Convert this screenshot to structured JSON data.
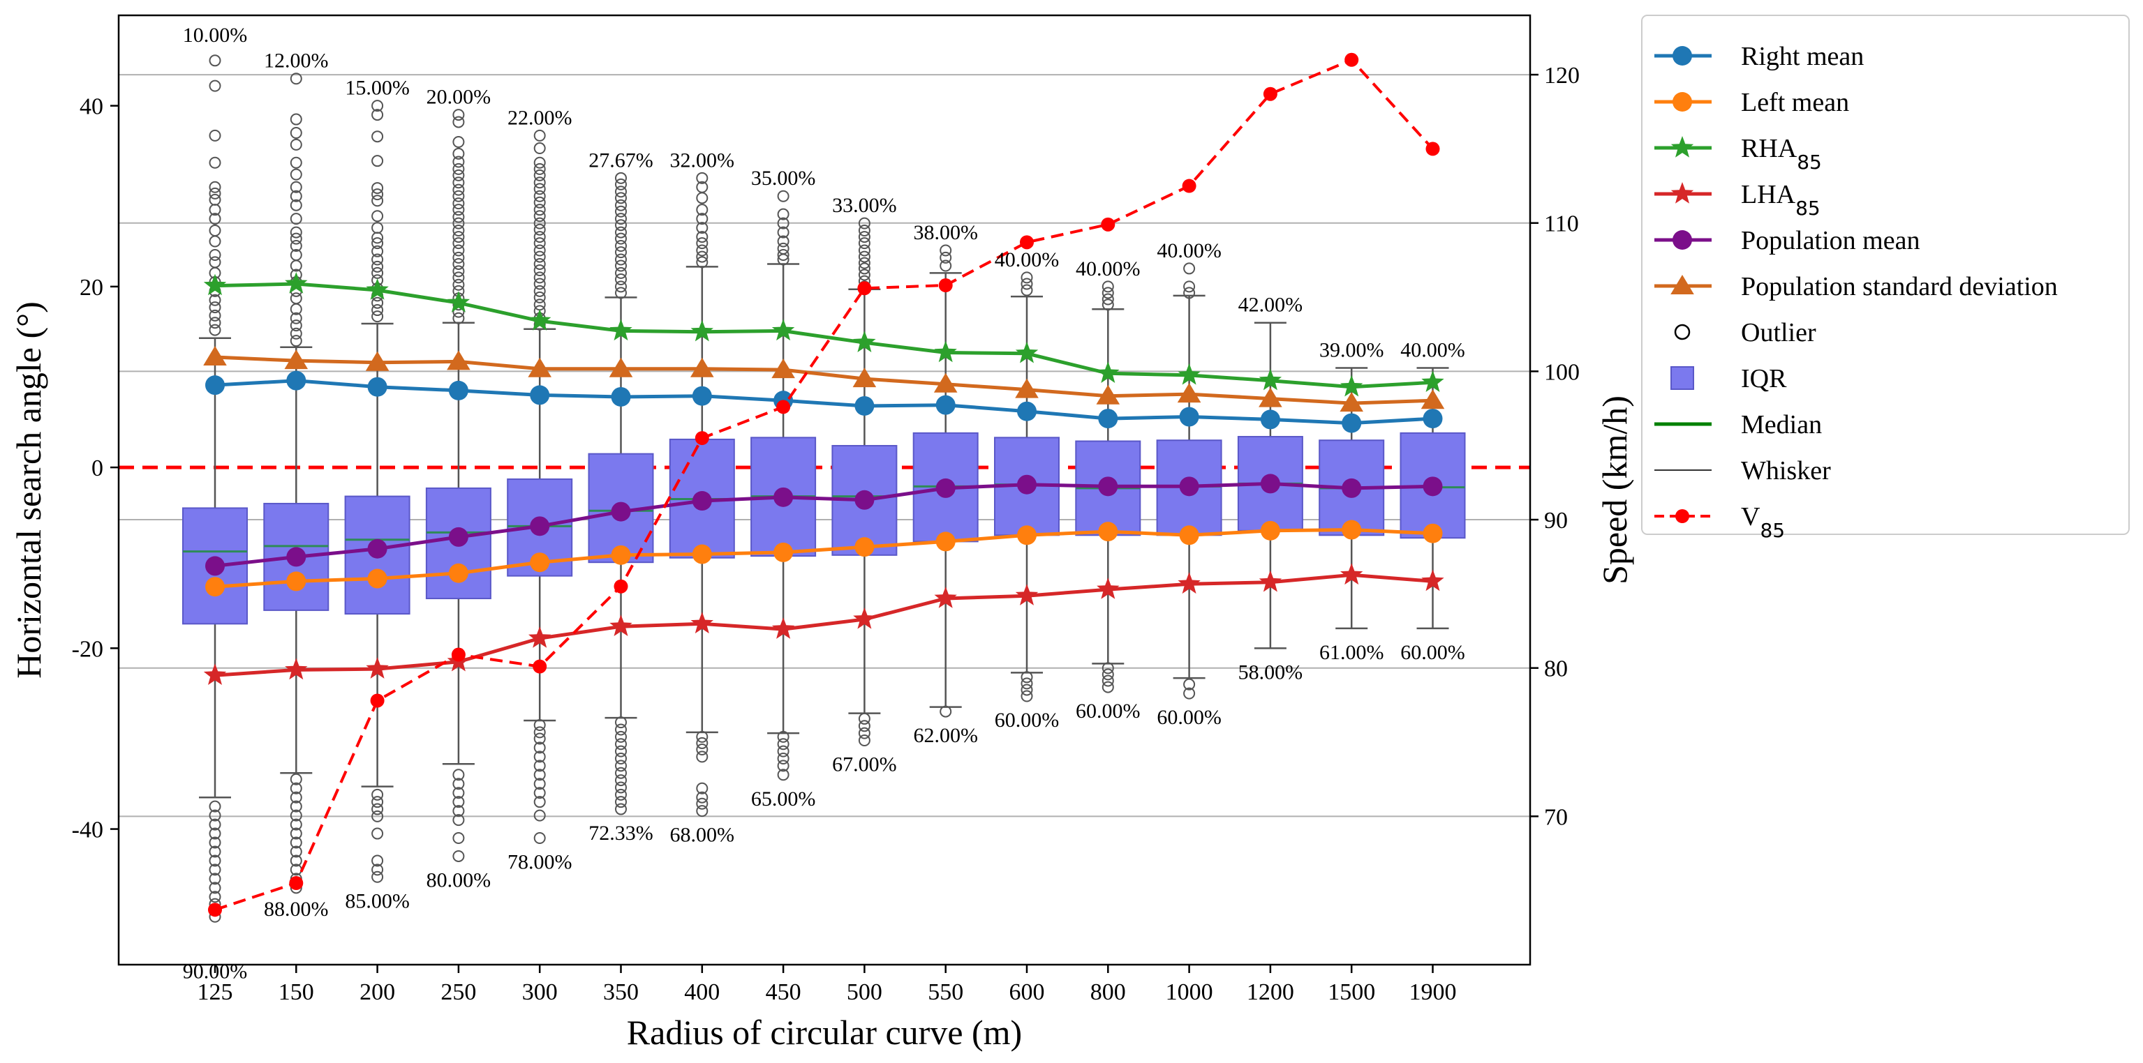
{
  "chart_data": {
    "type": "box",
    "xlabel": "Radius of circular curve (m)",
    "ylabel_left": "Horizontal search angle (°)",
    "ylabel_right": "Speed (km/h)",
    "ylim_left": [
      -55,
      50
    ],
    "ylim_right": [
      60,
      124
    ],
    "yticks_left": [
      -40,
      -20,
      0,
      20,
      40
    ],
    "yticks_right": [
      70,
      80,
      90,
      100,
      110,
      120
    ],
    "reference_line_y": 0,
    "categories": [
      "125",
      "150",
      "200",
      "250",
      "300",
      "350",
      "400",
      "450",
      "500",
      "550",
      "600",
      "800",
      "1000",
      "1200",
      "1500",
      "1900"
    ],
    "boxes": {
      "q1": [
        -17.3,
        -15.8,
        -16.2,
        -14.5,
        -12.0,
        -10.5,
        -10.0,
        -9.8,
        -9.7,
        -8.2,
        -7.5,
        -7.5,
        -7.5,
        -7.0,
        -7.5,
        -7.8
      ],
      "q3": [
        -4.5,
        -4.0,
        -3.2,
        -2.3,
        -1.3,
        1.5,
        3.1,
        3.3,
        2.4,
        3.8,
        3.3,
        2.9,
        3.0,
        3.4,
        3.0,
        3.8
      ],
      "median": [
        -9.3,
        -8.7,
        -8.0,
        -7.2,
        -6.5,
        -4.8,
        -3.5,
        -3.2,
        -3.2,
        -2.1,
        -1.9,
        -2.3,
        -2.1,
        -1.8,
        -2.3,
        -2.2
      ],
      "whisker_low": [
        -36.5,
        -33.8,
        -35.3,
        -32.8,
        -28.0,
        -27.7,
        -29.3,
        -29.4,
        -27.2,
        -26.5,
        -22.7,
        -21.7,
        -23.3,
        -20.0,
        -17.8,
        -17.8
      ],
      "whisker_high": [
        14.3,
        13.3,
        15.9,
        16.0,
        15.3,
        18.8,
        22.2,
        22.5,
        19.7,
        21.5,
        18.9,
        17.5,
        19.0,
        16.0,
        11.0,
        11.0
      ]
    },
    "outliers": {
      "high": [
        [
          45.0,
          42.2,
          36.7,
          33.7,
          31.0,
          30.3,
          29.6,
          28.5,
          27.5,
          26.2,
          25.0,
          23.5,
          22.7,
          21.5,
          20.5,
          19.5,
          18.5,
          17.7,
          16.8,
          16.0,
          15.2
        ],
        [
          43.0,
          38.5,
          37.0,
          35.7,
          33.7,
          32.4,
          31.0,
          30.0,
          29.0,
          27.5,
          26.0,
          25.3,
          24.5,
          23.5,
          22.3,
          21.3,
          20.5,
          19.5,
          18.7,
          17.5,
          16.5,
          15.7,
          14.8,
          14.0
        ],
        [
          40.0,
          39.0,
          36.6,
          33.9,
          30.9,
          30.2,
          29.5,
          27.8,
          26.5,
          25.4,
          24.8,
          23.9,
          23.0,
          22.2,
          21.5,
          20.7,
          19.8,
          19.0,
          18.2,
          17.4,
          16.7
        ],
        [
          39.0,
          38.2,
          36.0,
          34.7,
          33.8,
          33.0,
          32.3,
          31.5,
          30.7,
          30.0,
          29.2,
          28.5,
          27.7,
          27.0,
          26.2,
          25.5,
          24.8,
          24.0,
          23.2,
          22.5,
          21.7,
          21.0,
          20.2,
          19.5,
          18.7,
          18.0,
          17.2,
          16.5
        ],
        [
          36.7,
          35.3,
          33.7,
          33.0,
          32.3,
          31.5,
          30.8,
          30.0,
          29.3,
          28.5,
          27.8,
          27.0,
          26.3,
          25.5,
          24.8,
          24.0,
          23.3,
          22.5,
          21.8,
          21.0,
          20.3,
          19.5,
          18.8,
          18.0,
          17.3,
          16.5,
          15.8
        ],
        [
          32.0,
          31.3,
          30.5,
          29.8,
          29.0,
          28.3,
          27.5,
          26.8,
          26.0,
          25.3,
          24.5,
          23.8,
          23.0,
          22.3,
          21.5,
          20.8,
          20.0,
          19.3
        ],
        [
          32.0,
          31.0,
          29.8,
          28.5,
          27.5,
          26.5,
          25.5,
          24.8,
          24.0,
          23.3,
          22.7
        ],
        [
          30.0,
          28.0,
          27.0,
          26.0,
          25.0,
          24.2,
          23.5,
          23.0
        ],
        [
          27.0,
          26.2,
          25.5,
          24.8,
          24.0,
          23.3,
          22.6,
          22.0,
          21.3,
          20.6,
          20.0
        ],
        [
          24.0,
          23.2,
          22.3
        ],
        [
          21.0,
          20.3,
          19.6
        ],
        [
          20.0,
          19.3,
          18.6,
          18.0
        ],
        [
          22.0,
          20.0,
          19.3
        ],
        [],
        [],
        []
      ],
      "low": [
        [
          -37.5,
          -38.5,
          -39.5,
          -40.5,
          -41.5,
          -42.5,
          -43.5,
          -44.5,
          -45.5,
          -46.5,
          -47.5,
          -48.3,
          -49.0,
          -49.7
        ],
        [
          -34.5,
          -35.5,
          -36.5,
          -37.5,
          -38.5,
          -39.5,
          -40.5,
          -41.5,
          -42.5,
          -43.5,
          -44.5,
          -45.5,
          -46.5
        ],
        [
          -36.2,
          -37.0,
          -37.8,
          -38.6,
          -40.5,
          -43.5,
          -44.5,
          -45.3
        ],
        [
          -34.0,
          -35.0,
          -36.0,
          -37.0,
          -38.0,
          -39.0,
          -41.0,
          -43.0
        ],
        [
          -28.5,
          -29.3,
          -30.0,
          -31.0,
          -32.0,
          -33.0,
          -34.0,
          -35.0,
          -36.0,
          -37.0,
          -38.5,
          -41.0
        ],
        [
          -28.2,
          -29.0,
          -29.8,
          -30.6,
          -31.4,
          -32.2,
          -33.0,
          -33.8,
          -34.6,
          -35.4,
          -36.2,
          -37.0,
          -37.8
        ],
        [
          -29.8,
          -30.5,
          -31.2,
          -32.0,
          -35.5,
          -36.5,
          -37.2,
          -38.0
        ],
        [
          -29.8,
          -30.6,
          -31.4,
          -32.2,
          -33.0,
          -34.0
        ],
        [
          -27.8,
          -28.6,
          -29.4,
          -30.2
        ],
        [
          -27.0
        ],
        [
          -23.2,
          -23.9,
          -24.6,
          -25.3
        ],
        [
          -22.2,
          -22.9,
          -23.6,
          -24.3
        ],
        [
          -24.0,
          -25.0
        ],
        [],
        [],
        []
      ]
    },
    "series": [
      {
        "name": "Right mean",
        "color": "#1f77b4",
        "marker": "circle",
        "axis": "left",
        "values": [
          9.1,
          9.6,
          8.9,
          8.5,
          8.0,
          7.8,
          7.9,
          7.4,
          6.8,
          6.9,
          6.2,
          5.4,
          5.6,
          5.3,
          4.9,
          5.4
        ]
      },
      {
        "name": "Left mean",
        "color": "#ff7f0e",
        "marker": "circle",
        "axis": "left",
        "values": [
          -13.2,
          -12.6,
          -12.3,
          -11.7,
          -10.5,
          -9.7,
          -9.6,
          -9.4,
          -8.8,
          -8.2,
          -7.5,
          -7.1,
          -7.5,
          -7.0,
          -6.9,
          -7.3
        ]
      },
      {
        "name": "RHA",
        "name_sub": "85",
        "color": "#2ca02c",
        "marker": "star",
        "axis": "left",
        "values": [
          20.1,
          20.3,
          19.6,
          18.2,
          16.2,
          15.1,
          15.0,
          15.1,
          13.8,
          12.7,
          12.6,
          10.4,
          10.2,
          9.6,
          8.9,
          9.4
        ]
      },
      {
        "name": "LHA",
        "name_sub": "85",
        "color": "#d62728",
        "marker": "star",
        "axis": "left",
        "values": [
          -23.0,
          -22.4,
          -22.3,
          -21.5,
          -18.9,
          -17.6,
          -17.3,
          -17.9,
          -16.8,
          -14.5,
          -14.2,
          -13.5,
          -12.9,
          -12.7,
          -11.9,
          -12.6
        ]
      },
      {
        "name": "Population mean",
        "color": "#7b0f8a",
        "marker": "circle",
        "axis": "left",
        "values": [
          -10.9,
          -9.9,
          -9.0,
          -7.7,
          -6.5,
          -4.9,
          -3.7,
          -3.3,
          -3.6,
          -2.3,
          -1.9,
          -2.1,
          -2.1,
          -1.8,
          -2.3,
          -2.1
        ]
      },
      {
        "name": "Population standard deviation",
        "color": "#d2691e",
        "marker": "triangle",
        "axis": "left",
        "values": [
          12.2,
          11.8,
          11.6,
          11.7,
          10.9,
          10.9,
          10.9,
          10.8,
          9.8,
          9.2,
          8.6,
          7.9,
          8.1,
          7.6,
          7.1,
          7.4
        ]
      },
      {
        "name": "V",
        "name_sub": "85",
        "color": "#ff0000",
        "marker": "dot",
        "axis": "right",
        "dashed": true,
        "values": [
          63.7,
          65.5,
          77.8,
          80.9,
          80.1,
          85.5,
          95.5,
          97.6,
          105.6,
          105.8,
          108.7,
          109.9,
          112.5,
          118.7,
          121.0,
          115.0
        ]
      }
    ],
    "percent_labels_upper": [
      "10.00%",
      "12.00%",
      "15.00%",
      "20.00%",
      "22.00%",
      "27.67%",
      "32.00%",
      "35.00%",
      "33.00%",
      "38.00%",
      "40.00%",
      "40.00%",
      "40.00%",
      "42.00%",
      "39.00%",
      "40.00%"
    ],
    "percent_labels_lower": [
      "90.00%",
      "88.00%",
      "85.00%",
      "80.00%",
      "78.00%",
      "72.33%",
      "68.00%",
      "65.00%",
      "67.00%",
      "62.00%",
      "60.00%",
      "60.00%",
      "60.00%",
      "58.00%",
      "61.00%",
      "60.00%"
    ],
    "legend": {
      "placement": "outside-right-top",
      "entries": [
        {
          "label": "Right mean",
          "kind": "line-circle",
          "color": "#1f77b4"
        },
        {
          "label": "Left mean",
          "kind": "line-circle",
          "color": "#ff7f0e"
        },
        {
          "label": "RHA",
          "sub": "85",
          "kind": "line-star",
          "color": "#2ca02c"
        },
        {
          "label": "LHA",
          "sub": "85",
          "kind": "line-star",
          "color": "#d62728"
        },
        {
          "label": "Population mean",
          "kind": "line-circle",
          "color": "#7b0f8a"
        },
        {
          "label": "Population standard deviation",
          "kind": "line-triangle",
          "color": "#d2691e"
        },
        {
          "label": "Outlier",
          "kind": "hollow-circle",
          "color": "#000000"
        },
        {
          "label": "IQR",
          "kind": "square",
          "color": "#7b79ee"
        },
        {
          "label": "Median",
          "kind": "line",
          "color": "#008000"
        },
        {
          "label": "Whisker",
          "kind": "thin-line",
          "color": "#000000"
        },
        {
          "label": "V",
          "sub": "85",
          "kind": "dashed-dot",
          "color": "#ff0000"
        }
      ]
    }
  }
}
